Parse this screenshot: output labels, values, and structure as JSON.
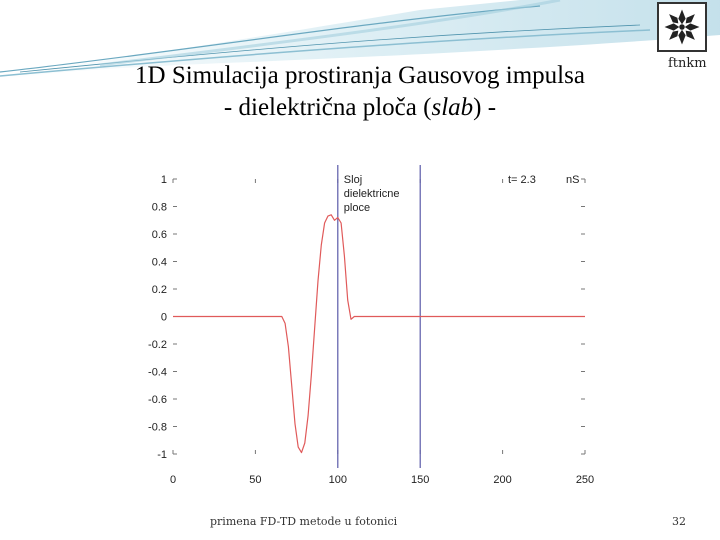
{
  "slide": {
    "title_line1": "1D Simulacija prostiranja Gausovog impulsa",
    "title_line2": "- dielektrična ploča (slab) -",
    "brand": "ftnkm",
    "footer": "primena FD-TD metode u fotonici",
    "page_number": "32",
    "logo_icon": "snowflake-emblem-icon"
  },
  "chart_data": {
    "type": "line",
    "title": "",
    "xlabel": "",
    "ylabel": "",
    "xlim": [
      0,
      250
    ],
    "ylim": [
      -1,
      1
    ],
    "x_ticks": [
      "0",
      "50",
      "100",
      "150",
      "200",
      "250"
    ],
    "y_ticks": [
      "1",
      "0.8",
      "0.6",
      "0.4",
      "0.2",
      "0",
      "-0.2",
      "-0.4",
      "-0.6",
      "-0.8",
      "-1"
    ],
    "annotations": {
      "slab_label_line1": "Sloj",
      "slab_label_line2": "dielektricne",
      "slab_label_line3": "ploce",
      "time_label": "t= 2.3",
      "time_unit": "nS"
    },
    "slab_boundaries": [
      100,
      150
    ],
    "series": [
      {
        "color": "#e05a5a",
        "x": [
          0,
          66,
          68,
          70,
          72,
          74,
          76,
          78,
          80,
          82,
          84,
          86,
          88,
          90,
          92,
          94,
          96,
          98,
          100,
          102,
          104,
          106,
          108,
          110,
          112,
          114,
          116,
          250
        ],
        "y": [
          0,
          0,
          -0.05,
          -0.22,
          -0.5,
          -0.78,
          -0.95,
          -0.99,
          -0.92,
          -0.72,
          -0.42,
          -0.08,
          0.26,
          0.52,
          0.68,
          0.73,
          0.74,
          0.7,
          0.72,
          0.68,
          0.44,
          0.12,
          -0.02,
          0.0,
          0.0,
          0.0,
          0.0,
          0
        ]
      }
    ],
    "boundary_color": "#5a5aa8"
  }
}
